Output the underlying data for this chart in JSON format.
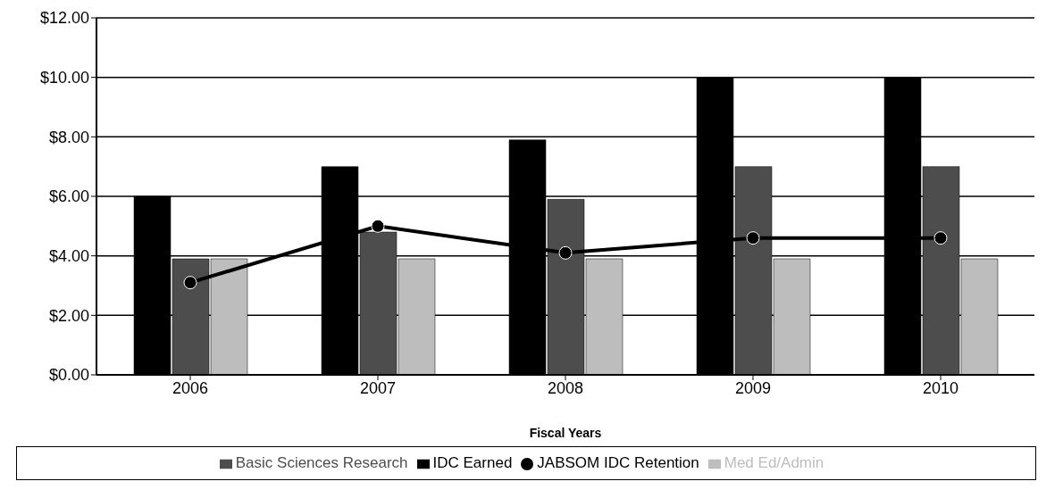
{
  "chart_data": {
    "type": "bar",
    "xlabel": "Fiscal Years",
    "categories": [
      "2006",
      "2007",
      "2008",
      "2009",
      "2010"
    ],
    "series": [
      {
        "name": "IDC Earned",
        "color": "#000000",
        "values": [
          6.0,
          7.0,
          7.9,
          10.0,
          10.0
        ]
      },
      {
        "name": "Basic Sciences Research",
        "color": "#4d4d4d",
        "values": [
          3.9,
          4.8,
          5.9,
          7.0,
          7.0
        ]
      },
      {
        "name": "Med Ed/Admin",
        "color": "#bdbdbd",
        "values": [
          3.9,
          3.9,
          3.9,
          3.9,
          3.9
        ]
      },
      {
        "name": "JABSOM IDC Retention",
        "type": "line",
        "color": "#000000",
        "marker": "circle",
        "values": [
          3.1,
          5.0,
          4.1,
          4.6,
          4.6
        ]
      }
    ],
    "ylim": [
      0,
      12
    ],
    "yticks": [
      {
        "value": 0,
        "label": "$0.00"
      },
      {
        "value": 2,
        "label": "$2.00"
      },
      {
        "value": 4,
        "label": "$4.00"
      },
      {
        "value": 6,
        "label": "$6.00"
      },
      {
        "value": 8,
        "label": "$8.00"
      },
      {
        "value": 10,
        "label": "$10.00"
      },
      {
        "value": 12,
        "label": "$12.00"
      }
    ],
    "grid": "y",
    "legend": "bottom"
  }
}
